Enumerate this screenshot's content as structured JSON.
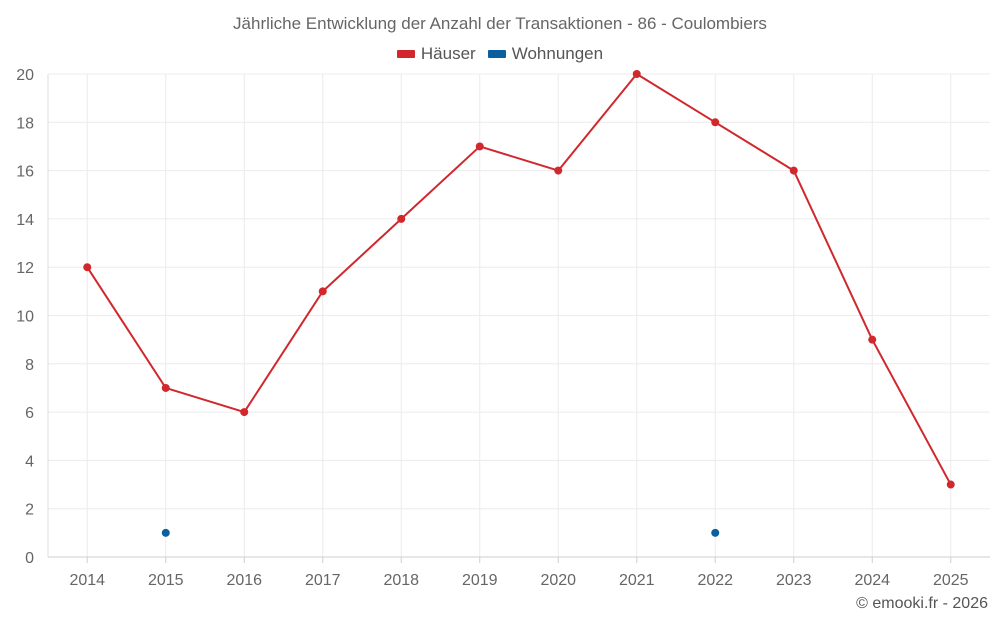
{
  "chart_data": {
    "type": "line",
    "title": "Jährliche Entwicklung der Anzahl der Transaktionen - 86 - Coulombiers",
    "categories": [
      "2014",
      "2015",
      "2016",
      "2017",
      "2018",
      "2019",
      "2020",
      "2021",
      "2022",
      "2023",
      "2024",
      "2025"
    ],
    "series": [
      {
        "name": "Häuser",
        "color": "#d0282d",
        "line": true,
        "values": [
          12,
          7,
          6,
          11,
          14,
          17,
          16,
          20,
          18,
          16,
          9,
          3
        ]
      },
      {
        "name": "Wohnungen",
        "color": "#0a5f9e",
        "line": false,
        "values": [
          null,
          1,
          null,
          null,
          null,
          null,
          null,
          null,
          1,
          null,
          null,
          null
        ]
      }
    ],
    "ylim": [
      0,
      20
    ],
    "yticks": [
      0,
      2,
      4,
      6,
      8,
      10,
      12,
      14,
      16,
      18,
      20
    ],
    "grid": true,
    "legend_position": "top-center"
  },
  "footer": {
    "copyright": "© emooki.fr - 2026"
  }
}
